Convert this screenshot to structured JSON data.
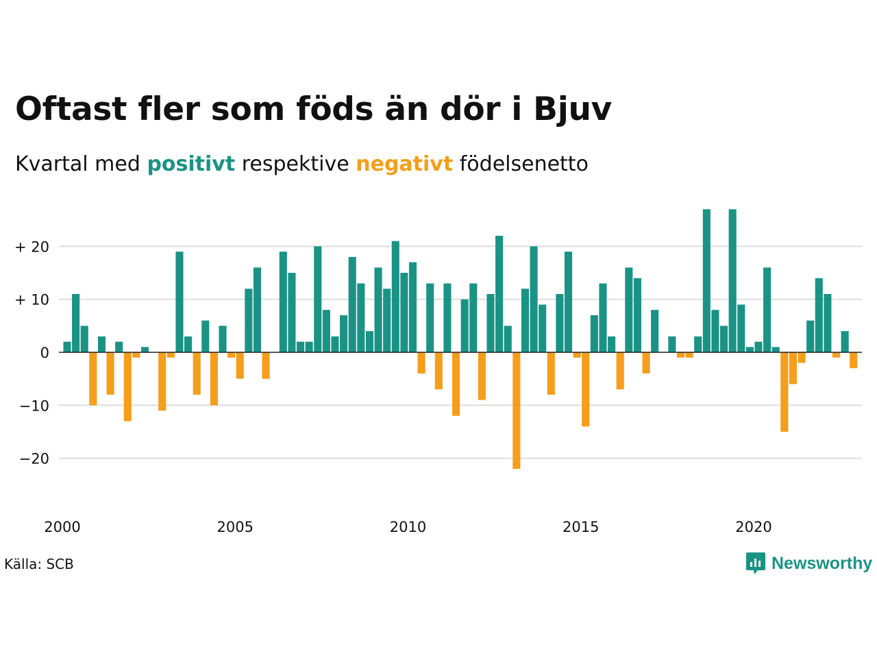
{
  "header": {
    "title": "Oftast fler som föds än dör i Bjuv",
    "subtitle_pre": "Kvartal med",
    "subtitle_pos": "positivt",
    "subtitle_mid": "respektive",
    "subtitle_neg": "negativt",
    "subtitle_post": "födelsenetto"
  },
  "footer": {
    "source": "Källa: SCB",
    "brand": "Newsworthy"
  },
  "colors": {
    "positive": "#1a9385",
    "negative": "#f59e1b",
    "grid": "#dddddd",
    "zero_line": "#222222"
  },
  "chart_data": {
    "type": "bar",
    "x_start_year": 2000,
    "x_end_year": 2023,
    "periods_per_year": 4,
    "ylim": [
      -25,
      28
    ],
    "y_ticks": [
      {
        "value": 20,
        "label": "+ 20"
      },
      {
        "value": 10,
        "label": "+ 10"
      },
      {
        "value": 0,
        "label": "0"
      },
      {
        "value": -10,
        "label": "−10"
      },
      {
        "value": -20,
        "label": "−20"
      }
    ],
    "x_ticks": [
      "2000",
      "2005",
      "2010",
      "2015",
      "2020"
    ],
    "values": [
      2,
      11,
      5,
      -10,
      3,
      -8,
      2,
      -13,
      -1,
      1,
      0,
      -11,
      -1,
      19,
      3,
      -8,
      6,
      -10,
      5,
      -1,
      -5,
      12,
      16,
      -5,
      0,
      19,
      15,
      2,
      2,
      20,
      8,
      3,
      7,
      18,
      13,
      4,
      16,
      12,
      21,
      15,
      17,
      -4,
      13,
      -7,
      13,
      -12,
      10,
      13,
      -9,
      11,
      22,
      5,
      -22,
      12,
      20,
      9,
      -8,
      11,
      19,
      -1,
      -14,
      7,
      13,
      3,
      -7,
      16,
      14,
      -4,
      8,
      0,
      3,
      -1,
      -1,
      3,
      27,
      8,
      5,
      27,
      9,
      1,
      2,
      16,
      1,
      -15,
      -6,
      -2,
      6,
      14,
      11,
      -1,
      4,
      -3
    ]
  }
}
